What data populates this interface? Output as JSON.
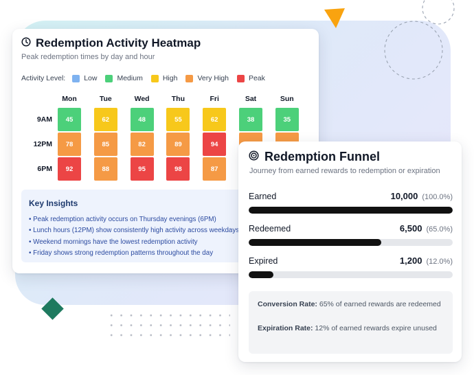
{
  "colors": {
    "low": "#7eb2f0",
    "medium": "#4cd07a",
    "high": "#f7c81b",
    "very_high": "#f59a45",
    "peak": "#ec4545",
    "accent_orange": "#f9a30f",
    "accent_green": "#1e7a5f"
  },
  "heatmap": {
    "title": "Redemption Activity Heatmap",
    "subtitle": "Peak redemption times by day and hour",
    "legend_title": "Activity Level:",
    "legend": [
      {
        "label": "Low",
        "level": "low"
      },
      {
        "label": "Medium",
        "level": "medium"
      },
      {
        "label": "High",
        "level": "high"
      },
      {
        "label": "Very High",
        "level": "very_high"
      },
      {
        "label": "Peak",
        "level": "peak"
      }
    ],
    "days": [
      "Mon",
      "Tue",
      "Wed",
      "Thu",
      "Fri",
      "Sat",
      "Sun"
    ],
    "times": [
      "9AM",
      "12PM",
      "6PM"
    ],
    "rows": [
      {
        "time": "9AM",
        "cells": [
          {
            "value": "45",
            "level": "medium"
          },
          {
            "value": "62",
            "level": "high"
          },
          {
            "value": "48",
            "level": "medium"
          },
          {
            "value": "55",
            "level": "high"
          },
          {
            "value": "62",
            "level": "high"
          },
          {
            "value": "38",
            "level": "medium"
          },
          {
            "value": "35",
            "level": "medium"
          }
        ]
      },
      {
        "time": "12PM",
        "cells": [
          {
            "value": "78",
            "level": "very_high"
          },
          {
            "value": "85",
            "level": "very_high"
          },
          {
            "value": "82",
            "level": "very_high"
          },
          {
            "value": "89",
            "level": "very_high"
          },
          {
            "value": "94",
            "level": "peak"
          },
          {
            "value": "",
            "level": "very_high"
          },
          {
            "value": "",
            "level": "very_high"
          }
        ]
      },
      {
        "time": "6PM",
        "cells": [
          {
            "value": "92",
            "level": "peak"
          },
          {
            "value": "88",
            "level": "very_high"
          },
          {
            "value": "95",
            "level": "peak"
          },
          {
            "value": "98",
            "level": "peak"
          },
          {
            "value": "87",
            "level": "very_high"
          },
          {
            "value": "",
            "level": "very_high"
          },
          {
            "value": "",
            "level": "very_high"
          }
        ]
      }
    ],
    "insights_title": "Key Insights",
    "insights": [
      "• Peak redemption activity occurs on Thursday evenings (6PM)",
      "• Lunch hours (12PM) show consistently high activity across weekdays",
      "• Weekend mornings have the lowest redemption activity",
      "• Friday shows strong redemption patterns throughout the day"
    ]
  },
  "funnel": {
    "title": "Redemption Funnel",
    "subtitle": "Journey from earned rewards to redemption or expiration",
    "stages": [
      {
        "label": "Earned",
        "value": "10,000",
        "percent": "(100.0%)",
        "fraction": 1.0
      },
      {
        "label": "Redeemed",
        "value": "6,500",
        "percent": "(65.0%)",
        "fraction": 0.65
      },
      {
        "label": "Expired",
        "value": "1,200",
        "percent": "(12.0%)",
        "fraction": 0.12
      }
    ],
    "summary": {
      "conversion_label": "Conversion Rate:",
      "conversion_text": " 65% of earned rewards are redeemed",
      "expiration_label": "Expiration Rate:",
      "expiration_text": " 12% of earned rewards expire unused"
    }
  }
}
